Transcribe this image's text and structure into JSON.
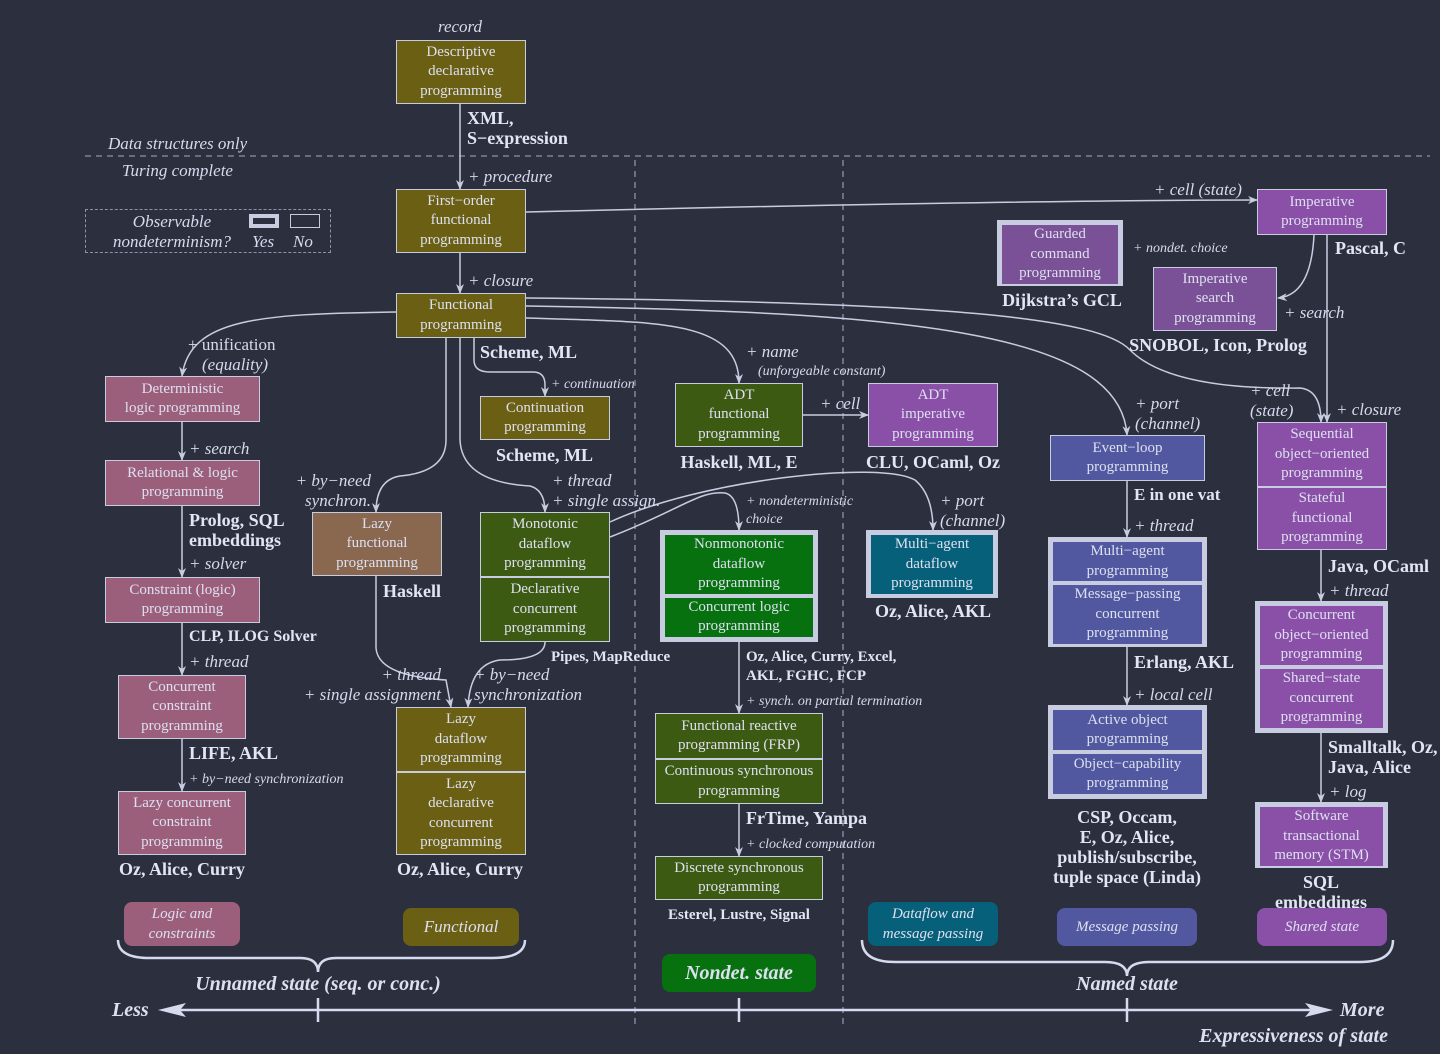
{
  "palette": {
    "background": "#2c303e",
    "functional": "#6a5f12",
    "logic": "#9c5f7b",
    "lazy": "#8a6850",
    "dataflow": "#3d5a12",
    "nondet": "#07700f",
    "dataflow_message": "#07607a",
    "message_passing": "#5158a0",
    "shared_state": "#8a50a8",
    "line": "#c8cce0"
  },
  "regions": {
    "data_only": "Data structures only",
    "turing": "Turing complete"
  },
  "legend": {
    "title": "Observable\nnondeterminism?",
    "yes": "Yes",
    "no": "No"
  },
  "boxes": {
    "descriptive": "Descriptive\ndeclarative\nprogramming",
    "first_order": "First−order\nfunctional\nprogramming",
    "functional": "Functional\nprogramming",
    "det_logic": "Deterministic\nlogic programming",
    "relational": "Relational & logic\nprogramming",
    "constraint": "Constraint (logic)\nprogramming",
    "conc_constraint": "Concurrent\nconstraint\nprogramming",
    "lazy_conc_constraint": "Lazy concurrent\nconstraint\nprogramming",
    "continuation": "Continuation\nprogramming",
    "lazy_functional": "Lazy\nfunctional\nprogramming",
    "monotonic": "Monotonic\ndataflow\nprogramming",
    "decl_concurrent": "Declarative\nconcurrent\nprogramming",
    "lazy_dataflow": "Lazy\ndataflow\nprogramming",
    "lazy_decl_conc": "Lazy\ndeclarative\nconcurrent\nprogramming",
    "nonmonotonic": "Nonmonotonic\ndataflow\nprogramming",
    "conc_logic": "Concurrent logic\nprogramming",
    "frp": "Functional reactive\nprogramming (FRP)",
    "cont_sync": "Continuous synchronous\nprogramming",
    "disc_sync": "Discrete synchronous\nprogramming",
    "adt_functional": "ADT\nfunctional\nprogramming",
    "adt_imperative": "ADT\nimperative\nprogramming",
    "multi_agent_dataflow": "Multi−agent\ndataflow\nprogramming",
    "guarded": "Guarded\ncommand\nprogramming",
    "imp_search": "Imperative\nsearch\nprogramming",
    "imperative": "Imperative\nprogramming",
    "event_loop": "Event−loop\nprogramming",
    "multi_agent": "Multi−agent\nprogramming",
    "message_passing_conc": "Message−passing\nconcurrent\nprogramming",
    "active_object": "Active object\nprogramming",
    "object_capability": "Object−capability\nprogramming",
    "seq_oo": "Sequential\nobject−oriented\nprogramming",
    "stateful_functional": "Stateful\nfunctional\nprogramming",
    "conc_oo": "Concurrent\nobject−oriented\nprogramming",
    "shared_state_conc": "Shared−state\nconcurrent\nprogramming",
    "stm": "Software\ntransactional\nmemory (STM)"
  },
  "languages": {
    "xml": "XML,\nS−expression",
    "scheme_ml_1": "Scheme, ML",
    "scheme_ml_2": "Scheme, ML",
    "prolog": "Prolog, SQL\nembeddings",
    "clp": "CLP, ILOG Solver",
    "life": "LIFE, AKL",
    "oz_curry_1": "Oz, Alice, Curry",
    "haskell": "Haskell",
    "pipes": "Pipes, MapReduce",
    "oz_curry_2": "Oz, Alice, Curry",
    "haskell_ml_e": "Haskell, ML, E",
    "clu": "CLU, OCaml, Oz",
    "oz_akl": "Oz, Alice, AKL",
    "oz_excel": "Oz, Alice, Curry, Excel,\nAKL, FGHC, FCP",
    "frtime": "FrTime, Yampa",
    "esterel": "Esterel, Lustre, Signal",
    "dijkstra": "Dijkstra’s GCL",
    "pascal": "Pascal, C",
    "snobol": "SNOBOL, Icon, Prolog",
    "e_vat": "E in one vat",
    "erlang": "Erlang, AKL",
    "csp": "CSP, Occam,\nE, Oz, Alice,\npublish/subscribe,\ntuple space (Linda)",
    "java_ocaml": "Java, OCaml",
    "smalltalk": "Smalltalk, Oz,\nJava, Alice",
    "sql": "SQL embeddings"
  },
  "edges": {
    "record": "record",
    "procedure": "+ procedure",
    "closure": "+ closure",
    "cell_state": "+ cell (state)",
    "nondet_choice": "+ nondet. choice",
    "search_imp": "+ search",
    "unification": "+ unification",
    "equality": "(equality)",
    "search": "+ search",
    "solver": "+ solver",
    "thread_c": "+ thread",
    "byneed_sync": "+ by−need synchronization",
    "continuation": "+ continuation",
    "byneed_synchron": "+ by−need\nsynchron.",
    "thread_single": "+ thread\n+ single assign.",
    "name": "+ name",
    "unforgeable": "(unforgeable constant)",
    "cell": "+ cell",
    "port_channel_1": "+ port\n(channel)",
    "cell_state_2": "+ cell\n(state)",
    "closure_2": "+ closure",
    "nondet_choice_2": "+ nondeterministic\nchoice",
    "port_channel_2": "+ port\n(channel)",
    "thread_mp": "+ thread",
    "thread_ss": "+ thread",
    "local_cell": "+ local cell",
    "log": "+ log",
    "thread_single_assignment": "+ thread\n+ single assignment",
    "byneed_synchronization": "+ by−need\nsynchronization",
    "synch_partial": "+ synch. on partial termination",
    "clocked": "+ clocked computation"
  },
  "categories": {
    "logic": "Logic and\nconstraints",
    "functional": "Functional",
    "nondet": "Nondet. state",
    "dataflow_mp": "Dataflow and\nmessage passing",
    "message_passing": "Message passing",
    "shared_state": "Shared state"
  },
  "axis": {
    "unnamed": "Unnamed state (seq. or conc.)",
    "named": "Named state",
    "less": "Less",
    "more": "More",
    "title": "Expressiveness of state"
  }
}
